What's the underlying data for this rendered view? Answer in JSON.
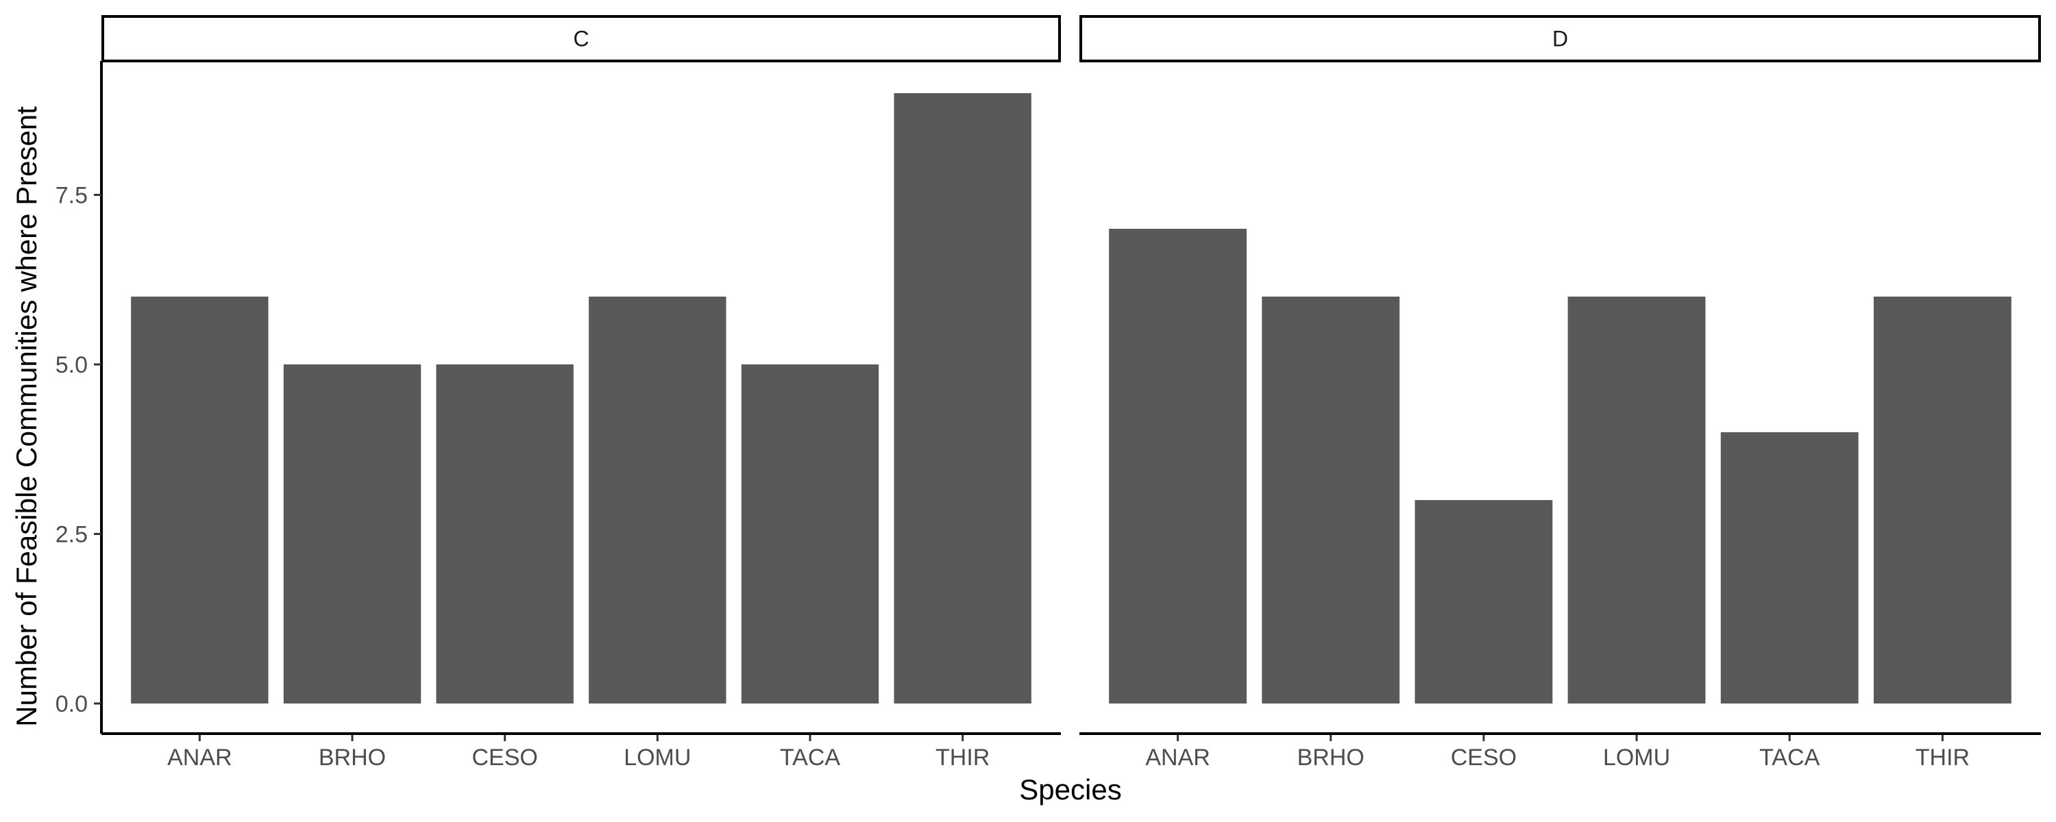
{
  "chart_data": {
    "type": "bar",
    "xlabel": "Species",
    "ylabel": "Number of Feasible Communities where Present",
    "ylim": [
      0,
      9.45
    ],
    "yticks": [
      "0.0",
      "2.5",
      "5.0",
      "7.5"
    ],
    "ytick_values": [
      0,
      2.5,
      5,
      7.5
    ],
    "grid": false,
    "facets": [
      {
        "label": "C",
        "categories": [
          "ANAR",
          "BRHO",
          "CESO",
          "LOMU",
          "TACA",
          "THIR"
        ],
        "values": [
          6,
          5,
          5,
          6,
          5,
          9
        ]
      },
      {
        "label": "D",
        "categories": [
          "ANAR",
          "BRHO",
          "CESO",
          "LOMU",
          "TACA",
          "THIR"
        ],
        "values": [
          7,
          6,
          3,
          6,
          4,
          6
        ]
      }
    ],
    "bar_color": "#595959"
  }
}
